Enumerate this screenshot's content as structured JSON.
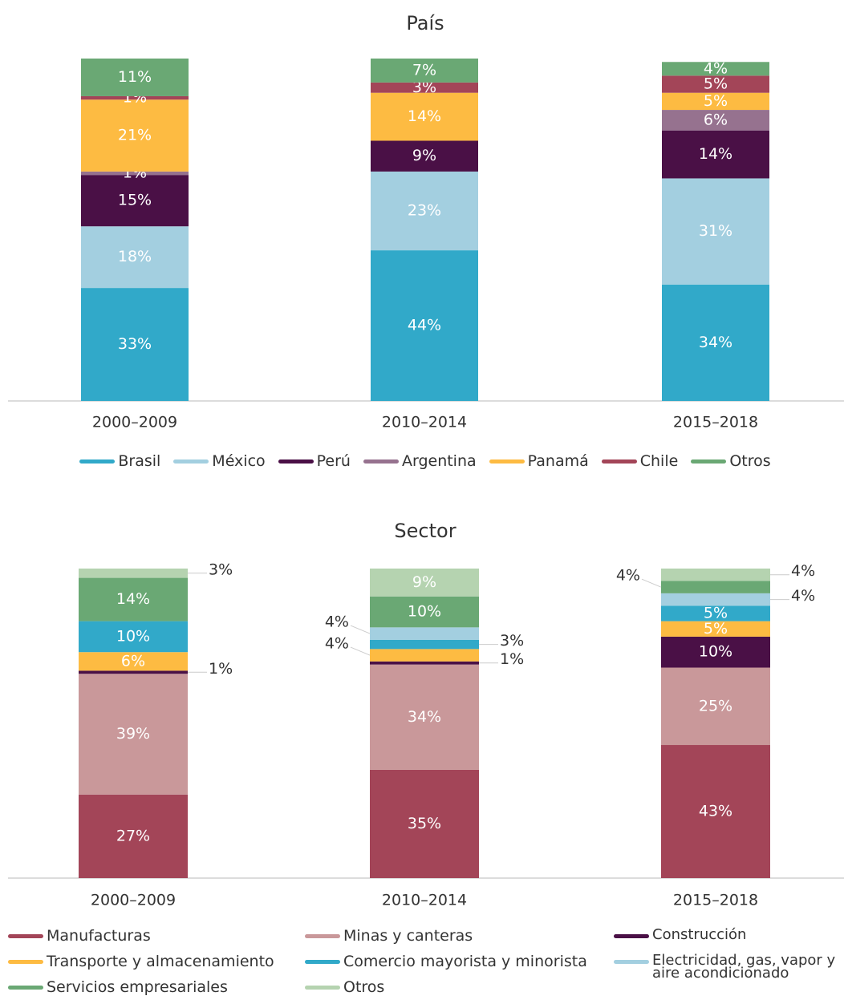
{
  "chart_data": [
    {
      "type": "stacked_bar",
      "title": "País",
      "categories": [
        "2000–2009",
        "2010–2014",
        "2015–2018"
      ],
      "ylim": [
        0,
        100
      ],
      "series": [
        {
          "name": "Brasil",
          "color": "#31a9c9",
          "values": [
            33,
            44,
            34
          ],
          "value_labels": [
            "33%",
            "44%",
            "34%"
          ]
        },
        {
          "name": "México",
          "color": "#a3cfe0",
          "values": [
            18,
            23,
            31
          ],
          "value_labels": [
            "18%",
            "23%",
            "31%"
          ]
        },
        {
          "name": "Perú",
          "color": "#4a1046",
          "values": [
            15,
            9,
            14
          ],
          "value_labels": [
            "15%",
            "9%",
            "14%"
          ]
        },
        {
          "name": "Argentina",
          "color": "#96728f",
          "values": [
            1,
            0,
            6
          ],
          "value_labels": [
            "1%",
            null,
            "6%"
          ]
        },
        {
          "name": "Panamá",
          "color": "#fdbb42",
          "values": [
            21,
            14,
            5
          ],
          "value_labels": [
            "21%",
            "14%",
            "5%"
          ]
        },
        {
          "name": "Chile",
          "color": "#a34558",
          "values": [
            1,
            3,
            5
          ],
          "value_labels": [
            "1%",
            "3%",
            "5%"
          ]
        },
        {
          "name": "Otros",
          "color": "#6aa874",
          "values": [
            11,
            7,
            4
          ],
          "value_labels": [
            "11%",
            "7%",
            "4%"
          ]
        }
      ]
    },
    {
      "type": "stacked_bar",
      "title": "Sector",
      "categories": [
        "2000–2009",
        "2010–2014",
        "2015–2018"
      ],
      "ylim": [
        0,
        100
      ],
      "series": [
        {
          "name": "Manufacturas",
          "color": "#a34558",
          "values": [
            27,
            35,
            43
          ],
          "value_labels": [
            "27%",
            "35%",
            "43%"
          ]
        },
        {
          "name": "Minas y canteras",
          "color": "#c9989a",
          "values": [
            39,
            34,
            25
          ],
          "value_labels": [
            "39%",
            "34%",
            "25%"
          ]
        },
        {
          "name": "Construcción",
          "color": "#4a1046",
          "values": [
            1,
            1,
            10
          ],
          "value_labels": [
            "1%",
            "1%",
            "10%"
          ]
        },
        {
          "name": "Transporte y almacenamiento",
          "color": "#fdbb42",
          "values": [
            6,
            4,
            5
          ],
          "value_labels": [
            "6%",
            "4%",
            "5%"
          ]
        },
        {
          "name": "Comercio mayorista y minorista",
          "color": "#31a9c9",
          "values": [
            10,
            3,
            5
          ],
          "value_labels": [
            "10%",
            "3%",
            "5%"
          ]
        },
        {
          "name": "Electricidad, gas, vapor y aire acondicionado",
          "color": "#a3cfe0",
          "values": [
            0,
            4,
            4
          ],
          "value_labels": [
            null,
            "4%",
            "4%"
          ]
        },
        {
          "name": "Servicios empresariales",
          "color": "#6aa874",
          "values": [
            14,
            10,
            4
          ],
          "value_labels": [
            "14%",
            "10%",
            "4%"
          ]
        },
        {
          "name": "Otros",
          "color": "#b5d3b0",
          "values": [
            3,
            9,
            4
          ],
          "value_labels": [
            "3%",
            "9%",
            "4%"
          ]
        }
      ]
    }
  ]
}
